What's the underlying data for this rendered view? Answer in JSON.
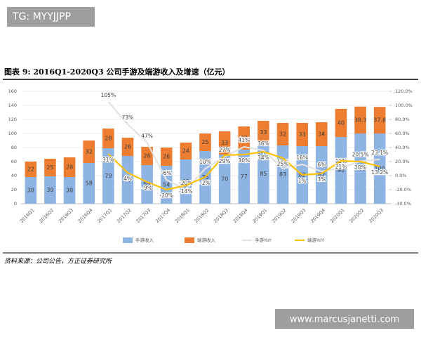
{
  "overlay_top": "TG: MYYJJPP",
  "overlay_bottom": "www.marcusjanetti.com",
  "chart_data": {
    "type": "bar-line",
    "title": "图表 9:  2016Q1-2020Q3 公司手游及端游收入及增速（亿元）",
    "source": "资料来源：公司公告，方正证券研究所",
    "categories": [
      "2016Q1",
      "2016Q2",
      "2016Q3",
      "2016Q4",
      "2017Q1",
      "2017Q2",
      "2017Q3",
      "2017Q4",
      "2018Q1",
      "2018Q2",
      "2018Q3",
      "2018Q4",
      "2019Q1",
      "2019Q2",
      "2019Q3",
      "2019Q4",
      "2020Q1",
      "2020Q2",
      "2020Q3"
    ],
    "series": [
      {
        "name": "手游收入",
        "kind": "bar",
        "color": "#8eb4e3",
        "values": [
          38,
          39,
          38,
          58,
          79,
          68,
          55,
          54,
          63,
          75,
          70,
          77,
          85,
          83,
          82,
          82,
          95,
          100,
          100
        ]
      },
      {
        "name": "端游收入",
        "kind": "bar",
        "color": "#ed7d31",
        "values": [
          22,
          25,
          28,
          32,
          28,
          26,
          26,
          26,
          24,
          25,
          33,
          33,
          33,
          32,
          33,
          34,
          40,
          38.3,
          37.8
        ]
      },
      {
        "name": "手游YoY",
        "kind": "line",
        "axis": "y2",
        "color": "#e3e3e3",
        "values": [
          null,
          null,
          null,
          null,
          105,
          73,
          47,
          -6,
          -20,
          10,
          27,
          41,
          36,
          10,
          16,
          6,
          11,
          20.5,
          23.1
        ],
        "value_labels": [
          null,
          null,
          null,
          null,
          "105%",
          "73%",
          "47%",
          "-6%",
          "-20%",
          "10%",
          "27%",
          "41%",
          "36%",
          "10%",
          "16%",
          "6%",
          "11%",
          "20.5%",
          "23.1%"
        ]
      },
      {
        "name": "端游YoY",
        "kind": "line",
        "axis": "y2",
        "color": "#ffc000",
        "values": [
          null,
          null,
          null,
          null,
          31,
          4,
          -9,
          -20,
          -14,
          -2,
          29,
          30,
          34,
          25,
          1,
          3,
          21,
          20,
          13.2
        ],
        "value_labels": [
          null,
          null,
          null,
          null,
          "31%",
          "4%",
          "-9%",
          "-20%",
          "-14%",
          "-2%",
          "29%",
          "30%",
          "34%",
          "25%",
          "1%",
          "3%",
          "21%",
          "20%",
          "13.2%"
        ]
      }
    ],
    "ylim": [
      0,
      160
    ],
    "yticks": [
      0,
      20,
      40,
      60,
      80,
      100,
      120,
      140,
      160
    ],
    "y2lim": [
      -40,
      120
    ],
    "y2ticks": [
      {
        "value": -40,
        "label": "-40.0%"
      },
      {
        "value": -20,
        "label": "-20.0%"
      },
      {
        "value": 0,
        "label": "0.0%"
      },
      {
        "value": 20,
        "label": "20.0%"
      },
      {
        "value": 40,
        "label": "40.0%"
      },
      {
        "value": 60,
        "label": "60.0%"
      },
      {
        "value": 80,
        "label": "80.0%"
      },
      {
        "value": 100,
        "label": "100.0%"
      },
      {
        "value": 120,
        "label": "120.0%"
      }
    ],
    "legend": "bottom"
  }
}
